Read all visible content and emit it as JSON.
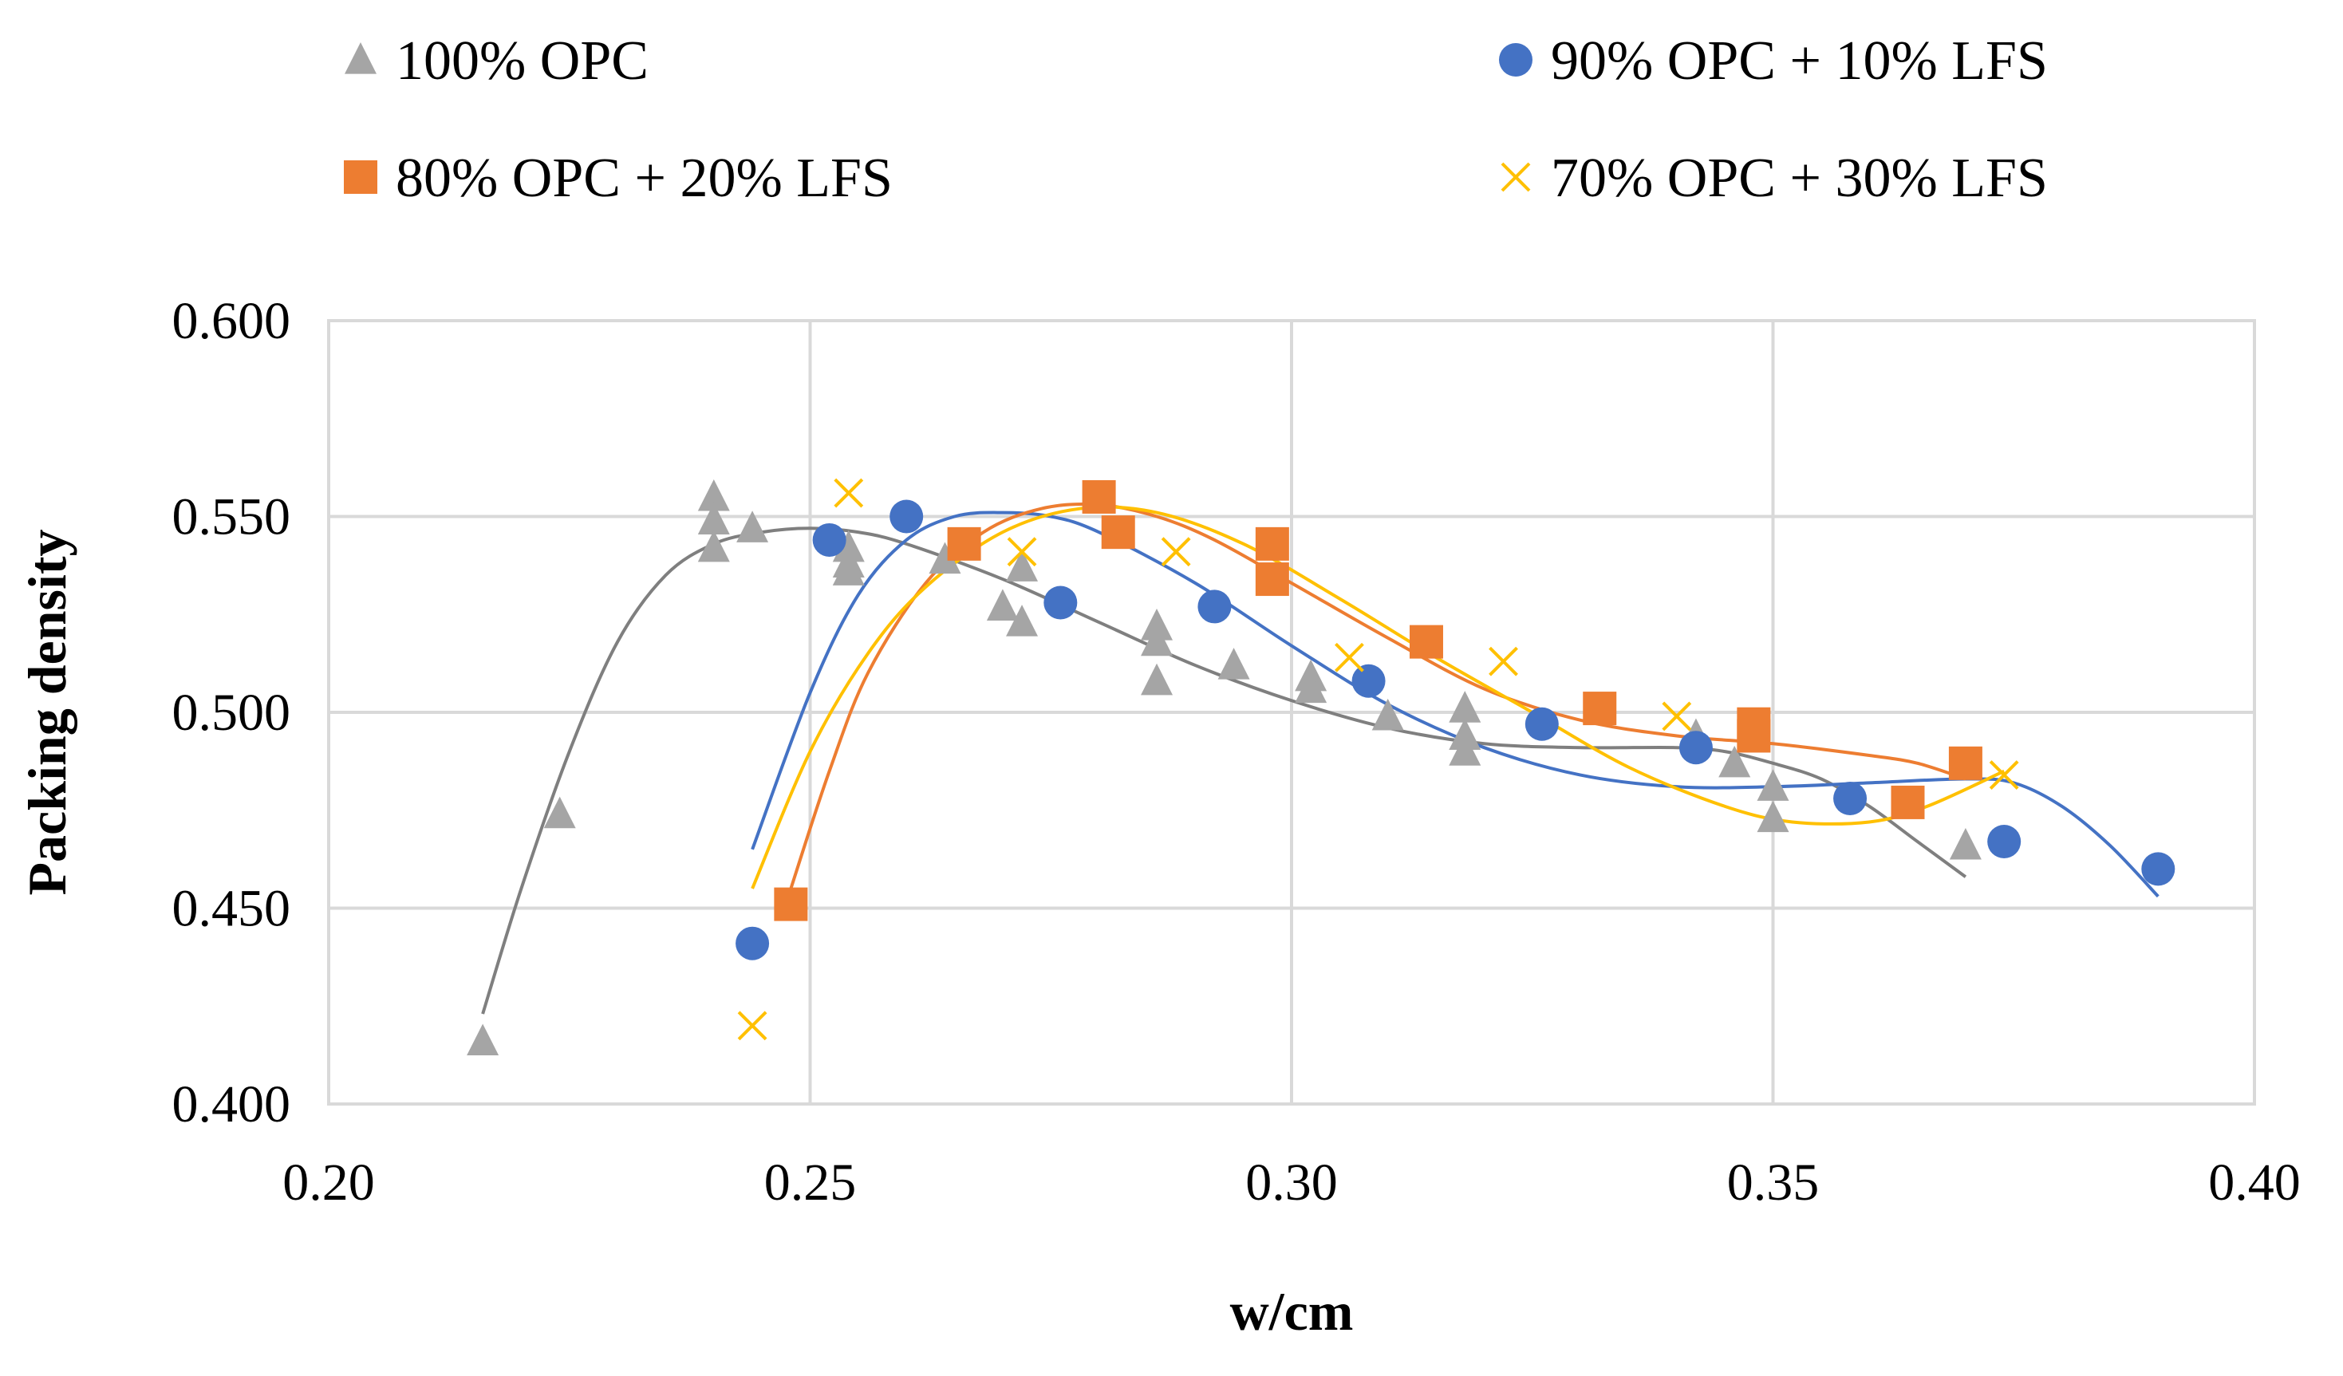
{
  "chart_data": {
    "type": "scatter",
    "title": "",
    "xlabel": "w/cm",
    "ylabel": "Packing density",
    "xlim": [
      0.2,
      0.4
    ],
    "ylim": [
      0.4,
      0.6
    ],
    "xticks": [
      "0.20",
      "0.25",
      "0.30",
      "0.35",
      "0.40"
    ],
    "yticks": [
      "0.400",
      "0.450",
      "0.500",
      "0.550",
      "0.600"
    ],
    "xtick_values": [
      0.2,
      0.25,
      0.3,
      0.35,
      0.4
    ],
    "ytick_values": [
      0.4,
      0.45,
      0.5,
      0.55,
      0.6
    ],
    "grid": true,
    "legend_position": "top",
    "trendline": "polynomial",
    "series": [
      {
        "name": "100% OPC",
        "marker": "triangle",
        "color": "#a5a5a5",
        "trend_color": "#7f7f7f",
        "points": [
          [
            0.216,
            0.416
          ],
          [
            0.224,
            0.474
          ],
          [
            0.24,
            0.555
          ],
          [
            0.24,
            0.549
          ],
          [
            0.24,
            0.542
          ],
          [
            0.244,
            0.547
          ],
          [
            0.254,
            0.542
          ],
          [
            0.254,
            0.538
          ],
          [
            0.254,
            0.536
          ],
          [
            0.264,
            0.539
          ],
          [
            0.27,
            0.527
          ],
          [
            0.272,
            0.537
          ],
          [
            0.272,
            0.523
          ],
          [
            0.286,
            0.522
          ],
          [
            0.286,
            0.518
          ],
          [
            0.286,
            0.508
          ],
          [
            0.294,
            0.512
          ],
          [
            0.302,
            0.509
          ],
          [
            0.302,
            0.506
          ],
          [
            0.31,
            0.499
          ],
          [
            0.318,
            0.501
          ],
          [
            0.318,
            0.494
          ],
          [
            0.318,
            0.49
          ],
          [
            0.342,
            0.494
          ],
          [
            0.346,
            0.487
          ],
          [
            0.35,
            0.481
          ],
          [
            0.35,
            0.473
          ],
          [
            0.37,
            0.466
          ]
        ],
        "trend": [
          [
            0.216,
            0.423
          ],
          [
            0.22,
            0.455
          ],
          [
            0.225,
            0.49
          ],
          [
            0.23,
            0.518
          ],
          [
            0.235,
            0.535
          ],
          [
            0.24,
            0.543
          ],
          [
            0.245,
            0.546
          ],
          [
            0.25,
            0.547
          ],
          [
            0.255,
            0.546
          ],
          [
            0.26,
            0.543
          ],
          [
            0.27,
            0.534
          ],
          [
            0.28,
            0.523
          ],
          [
            0.29,
            0.512
          ],
          [
            0.3,
            0.503
          ],
          [
            0.31,
            0.496
          ],
          [
            0.32,
            0.492
          ],
          [
            0.33,
            0.491
          ],
          [
            0.34,
            0.491
          ],
          [
            0.345,
            0.49
          ],
          [
            0.35,
            0.487
          ],
          [
            0.355,
            0.483
          ],
          [
            0.36,
            0.476
          ],
          [
            0.365,
            0.467
          ],
          [
            0.37,
            0.458
          ]
        ]
      },
      {
        "name": "90% OPC + 10% LFS",
        "marker": "circle",
        "color": "#4472c4",
        "trend_color": "#4472c4",
        "points": [
          [
            0.244,
            0.441
          ],
          [
            0.252,
            0.544
          ],
          [
            0.26,
            0.55
          ],
          [
            0.276,
            0.528
          ],
          [
            0.292,
            0.527
          ],
          [
            0.308,
            0.508
          ],
          [
            0.326,
            0.497
          ],
          [
            0.342,
            0.491
          ],
          [
            0.358,
            0.478
          ],
          [
            0.374,
            0.467
          ],
          [
            0.39,
            0.46
          ]
        ],
        "trend": [
          [
            0.244,
            0.465
          ],
          [
            0.25,
            0.505
          ],
          [
            0.255,
            0.53
          ],
          [
            0.26,
            0.544
          ],
          [
            0.265,
            0.55
          ],
          [
            0.27,
            0.551
          ],
          [
            0.275,
            0.55
          ],
          [
            0.28,
            0.546
          ],
          [
            0.29,
            0.533
          ],
          [
            0.3,
            0.517
          ],
          [
            0.31,
            0.502
          ],
          [
            0.32,
            0.491
          ],
          [
            0.33,
            0.484
          ],
          [
            0.34,
            0.481
          ],
          [
            0.35,
            0.481
          ],
          [
            0.36,
            0.482
          ],
          [
            0.37,
            0.483
          ],
          [
            0.375,
            0.482
          ],
          [
            0.38,
            0.476
          ],
          [
            0.385,
            0.466
          ],
          [
            0.39,
            0.453
          ]
        ]
      },
      {
        "name": "80% OPC + 20% LFS",
        "marker": "square",
        "color": "#ed7d31",
        "trend_color": "#ed7d31",
        "points": [
          [
            0.248,
            0.451
          ],
          [
            0.266,
            0.543
          ],
          [
            0.28,
            0.555
          ],
          [
            0.282,
            0.546
          ],
          [
            0.298,
            0.543
          ],
          [
            0.298,
            0.534
          ],
          [
            0.314,
            0.518
          ],
          [
            0.332,
            0.501
          ],
          [
            0.348,
            0.497
          ],
          [
            0.348,
            0.494
          ],
          [
            0.364,
            0.477
          ],
          [
            0.37,
            0.487
          ]
        ],
        "trend": [
          [
            0.248,
            0.455
          ],
          [
            0.252,
            0.485
          ],
          [
            0.256,
            0.51
          ],
          [
            0.262,
            0.533
          ],
          [
            0.268,
            0.546
          ],
          [
            0.274,
            0.552
          ],
          [
            0.28,
            0.553
          ],
          [
            0.286,
            0.55
          ],
          [
            0.292,
            0.544
          ],
          [
            0.3,
            0.533
          ],
          [
            0.31,
            0.519
          ],
          [
            0.32,
            0.506
          ],
          [
            0.33,
            0.498
          ],
          [
            0.34,
            0.494
          ],
          [
            0.35,
            0.492
          ],
          [
            0.36,
            0.489
          ],
          [
            0.365,
            0.487
          ],
          [
            0.37,
            0.483
          ]
        ]
      },
      {
        "name": "70% OPC + 30% LFS",
        "marker": "x",
        "color": "#ffc000",
        "trend_color": "#ffc000",
        "points": [
          [
            0.244,
            0.42
          ],
          [
            0.254,
            0.556
          ],
          [
            0.272,
            0.541
          ],
          [
            0.288,
            0.541
          ],
          [
            0.306,
            0.514
          ],
          [
            0.322,
            0.513
          ],
          [
            0.34,
            0.499
          ],
          [
            0.374,
            0.484
          ]
        ],
        "trend": [
          [
            0.244,
            0.455
          ],
          [
            0.25,
            0.49
          ],
          [
            0.256,
            0.515
          ],
          [
            0.262,
            0.532
          ],
          [
            0.27,
            0.546
          ],
          [
            0.278,
            0.552
          ],
          [
            0.286,
            0.551
          ],
          [
            0.295,
            0.543
          ],
          [
            0.305,
            0.529
          ],
          [
            0.315,
            0.514
          ],
          [
            0.325,
            0.5
          ],
          [
            0.335,
            0.486
          ],
          [
            0.345,
            0.476
          ],
          [
            0.352,
            0.472
          ],
          [
            0.36,
            0.472
          ],
          [
            0.366,
            0.476
          ],
          [
            0.374,
            0.485
          ]
        ]
      }
    ]
  }
}
